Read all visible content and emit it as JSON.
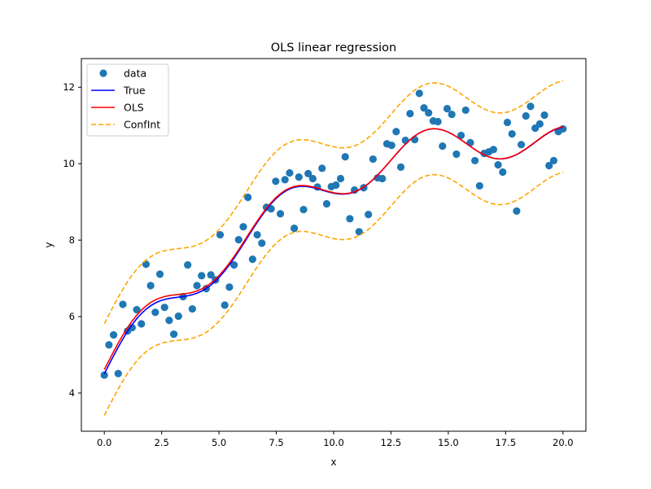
{
  "chart_data": {
    "type": "scatter",
    "title": "OLS linear regression",
    "xlabel": "x",
    "ylabel": "y",
    "xlim": [
      -1.0,
      21.0
    ],
    "ylim": [
      3.0,
      12.75
    ],
    "xticks": [
      0.0,
      2.5,
      5.0,
      7.5,
      10.0,
      12.5,
      15.0,
      17.5,
      20.0
    ],
    "xtick_labels": [
      "0.0",
      "2.5",
      "5.0",
      "7.5",
      "10.0",
      "12.5",
      "15.0",
      "17.5",
      "20.0"
    ],
    "yticks": [
      4,
      6,
      8,
      10,
      12
    ],
    "ytick_labels": [
      "4",
      "6",
      "8",
      "10",
      "12"
    ],
    "grid": false,
    "legend_position": "top-left",
    "legend": [
      {
        "label": "data",
        "style": "marker",
        "color": "#1f77b4"
      },
      {
        "label": "True",
        "style": "solid",
        "color": "#0000ff"
      },
      {
        "label": "OLS",
        "style": "solid",
        "color": "#ff0000"
      },
      {
        "label": "ConfInt",
        "style": "dashed",
        "color": "#ffa500"
      }
    ],
    "series": [
      {
        "name": "data",
        "kind": "scatter",
        "color": "#1f77b4",
        "x_range": [
          0,
          20
        ],
        "n_points": 100,
        "y": [
          4.47,
          5.26,
          5.52,
          4.51,
          6.32,
          5.62,
          5.71,
          6.18,
          5.81,
          7.37,
          6.81,
          6.11,
          7.11,
          6.24,
          5.9,
          5.54,
          6.01,
          6.52,
          7.35,
          6.2,
          6.81,
          7.07,
          6.73,
          7.09,
          6.96,
          8.14,
          6.3,
          6.77,
          7.35,
          8.01,
          8.35,
          9.12,
          7.5,
          8.14,
          7.92,
          8.86,
          8.82,
          9.54,
          8.69,
          9.58,
          9.76,
          8.31,
          9.65,
          8.8,
          9.74,
          9.61,
          9.39,
          9.88,
          8.95,
          9.4,
          9.44,
          9.61,
          10.18,
          8.56,
          9.31,
          8.22,
          9.37,
          8.67,
          10.12,
          9.63,
          9.61,
          10.52,
          10.48,
          10.84,
          9.91,
          10.61,
          11.31,
          10.63,
          11.84,
          11.46,
          11.33,
          11.12,
          11.1,
          10.46,
          11.44,
          11.29,
          10.25,
          10.74,
          11.4,
          10.55,
          10.08,
          9.42,
          10.27,
          10.31,
          10.37,
          9.97,
          9.78,
          11.08,
          10.78,
          8.76,
          10.5,
          11.25,
          11.5,
          10.93,
          11.04,
          11.27,
          9.95,
          10.08,
          10.84,
          10.91
        ]
      },
      {
        "name": "True",
        "kind": "line",
        "color": "#0000ff",
        "formula": "0.5*x + 0.5*sin(x) - 0.02*(x-5)^2 + 5",
        "coefficients": {
          "x": 0.5,
          "sin_x": 0.5,
          "x_minus_5_sq": -0.02,
          "const": 5.0
        }
      },
      {
        "name": "OLS",
        "kind": "line",
        "color": "#ff0000",
        "coefficients": {
          "x": 0.49,
          "sin_x": 0.5,
          "x_minus_5_sq": -0.0195,
          "const": 5.1
        }
      },
      {
        "name": "ConfInt",
        "kind": "band",
        "color": "#ffa500",
        "half_width": 1.2
      }
    ]
  }
}
